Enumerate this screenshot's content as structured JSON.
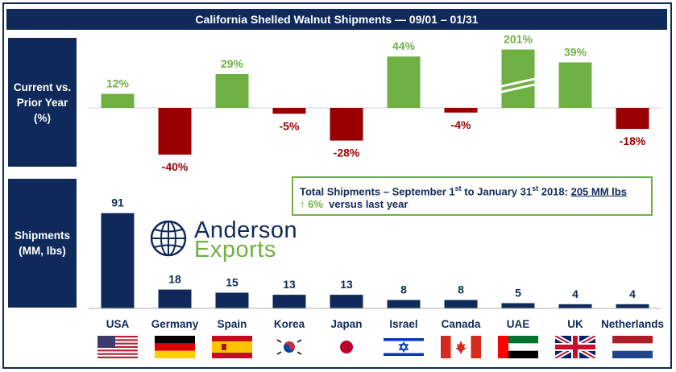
{
  "title": "California Shelled Walnut Shipments — 09/01 – 01/31",
  "labels": {
    "top": "Current vs.\nPrior Year\n(%)",
    "bottom": "Shipments\n(MM, lbs)"
  },
  "totals": {
    "line1_prefix": "Total Shipments – September 1",
    "line1_sup1": "st",
    "line1_mid": " to January  31",
    "line1_sup2": "st",
    "line1_suffix": " 2018: ",
    "value": "205 MM lbs",
    "arrow": "↑",
    "growth": "6%",
    "growth_suffix": "versus last year"
  },
  "logo": {
    "name": "Anderson",
    "sub": "Exports"
  },
  "colors": {
    "navy": "#0f2a5a",
    "green": "#6fb043",
    "red": "#990000"
  },
  "chart_data": [
    {
      "type": "bar",
      "title": "Current vs. Prior Year (%)",
      "categories": [
        "USA",
        "Germany",
        "Spain",
        "Korea",
        "Japan",
        "Israel",
        "Canada",
        "UAE",
        "UK",
        "Netherlands"
      ],
      "values": [
        12,
        -40,
        29,
        -5,
        -28,
        44,
        -4,
        201,
        39,
        -18
      ],
      "value_labels": [
        "12%",
        "-40%",
        "29%",
        "-5%",
        "-28%",
        "44%",
        "-4%",
        "201%",
        "39%",
        "-18%"
      ],
      "axis_break": "UAE bar truncated",
      "ylabel": "%"
    },
    {
      "type": "bar",
      "title": "Shipments (MM, lbs)",
      "categories": [
        "USA",
        "Germany",
        "Spain",
        "Korea",
        "Japan",
        "Israel",
        "Canada",
        "UAE",
        "UK",
        "Netherlands"
      ],
      "values": [
        91,
        18,
        15,
        13,
        13,
        8,
        8,
        5,
        4,
        4
      ],
      "value_labels": [
        "91",
        "18",
        "15",
        "13",
        "13",
        "8",
        "8",
        "5",
        "4",
        "4"
      ],
      "ylabel": "MM, lbs"
    }
  ],
  "countries": [
    "USA",
    "Germany",
    "Spain",
    "Korea",
    "Japan",
    "Israel",
    "Canada",
    "UAE",
    "UK",
    "Netherlands"
  ],
  "flags": [
    "us-flag-icon",
    "germany-flag-icon",
    "spain-flag-icon",
    "korea-flag-icon",
    "japan-flag-icon",
    "israel-flag-icon",
    "canada-flag-icon",
    "uae-flag-icon",
    "uk-flag-icon",
    "netherlands-flag-icon"
  ]
}
